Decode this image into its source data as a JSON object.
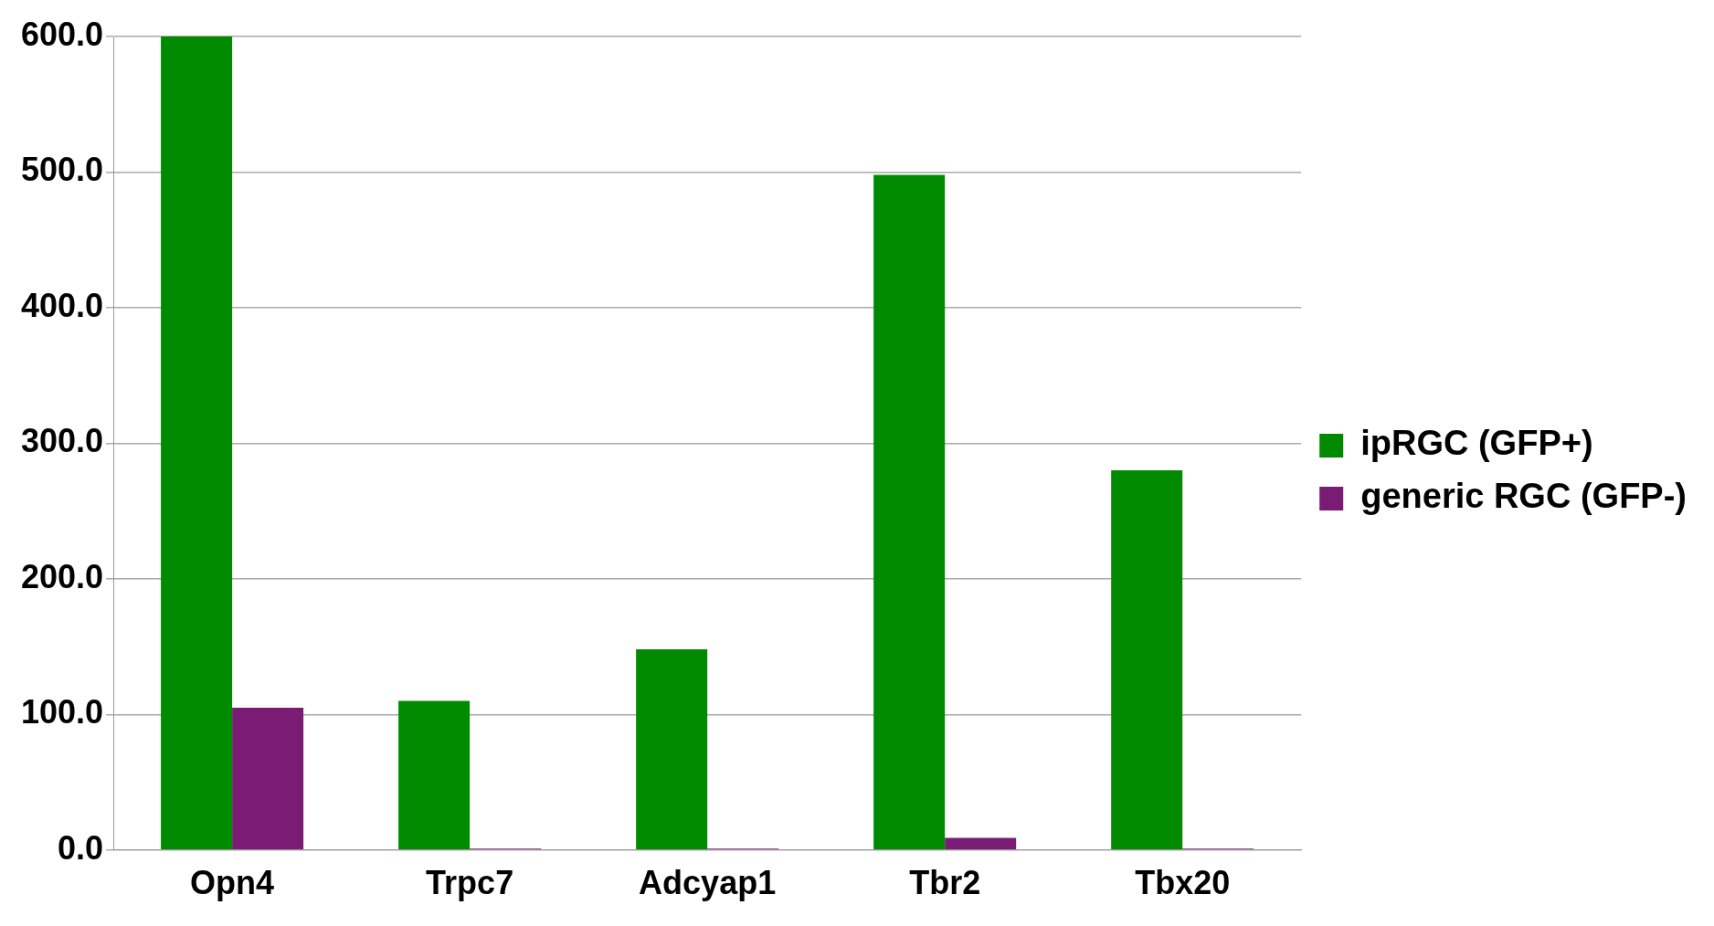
{
  "chart_data": {
    "type": "bar",
    "categories": [
      "Opn4",
      "Trpc7",
      "Adcyap1",
      "Tbr2",
      "Tbx20"
    ],
    "series": [
      {
        "name": "ipRGC (GFP+)",
        "color": "#008a00",
        "values": [
          600,
          110,
          148,
          498,
          280
        ]
      },
      {
        "name": "generic RGC (GFP-)",
        "color": "#7b1c74",
        "values": [
          105,
          1,
          1,
          9,
          1
        ]
      }
    ],
    "ylim": [
      0,
      600
    ],
    "yticks": [
      {
        "value": 0,
        "label": "0.0"
      },
      {
        "value": 100,
        "label": "100.0"
      },
      {
        "value": 200,
        "label": "200.0"
      },
      {
        "value": 300,
        "label": "300.0"
      },
      {
        "value": 400,
        "label": "400.0"
      },
      {
        "value": 500,
        "label": "500.0"
      },
      {
        "value": 600,
        "label": "600.0"
      }
    ],
    "grid": "y",
    "legend": "right"
  }
}
